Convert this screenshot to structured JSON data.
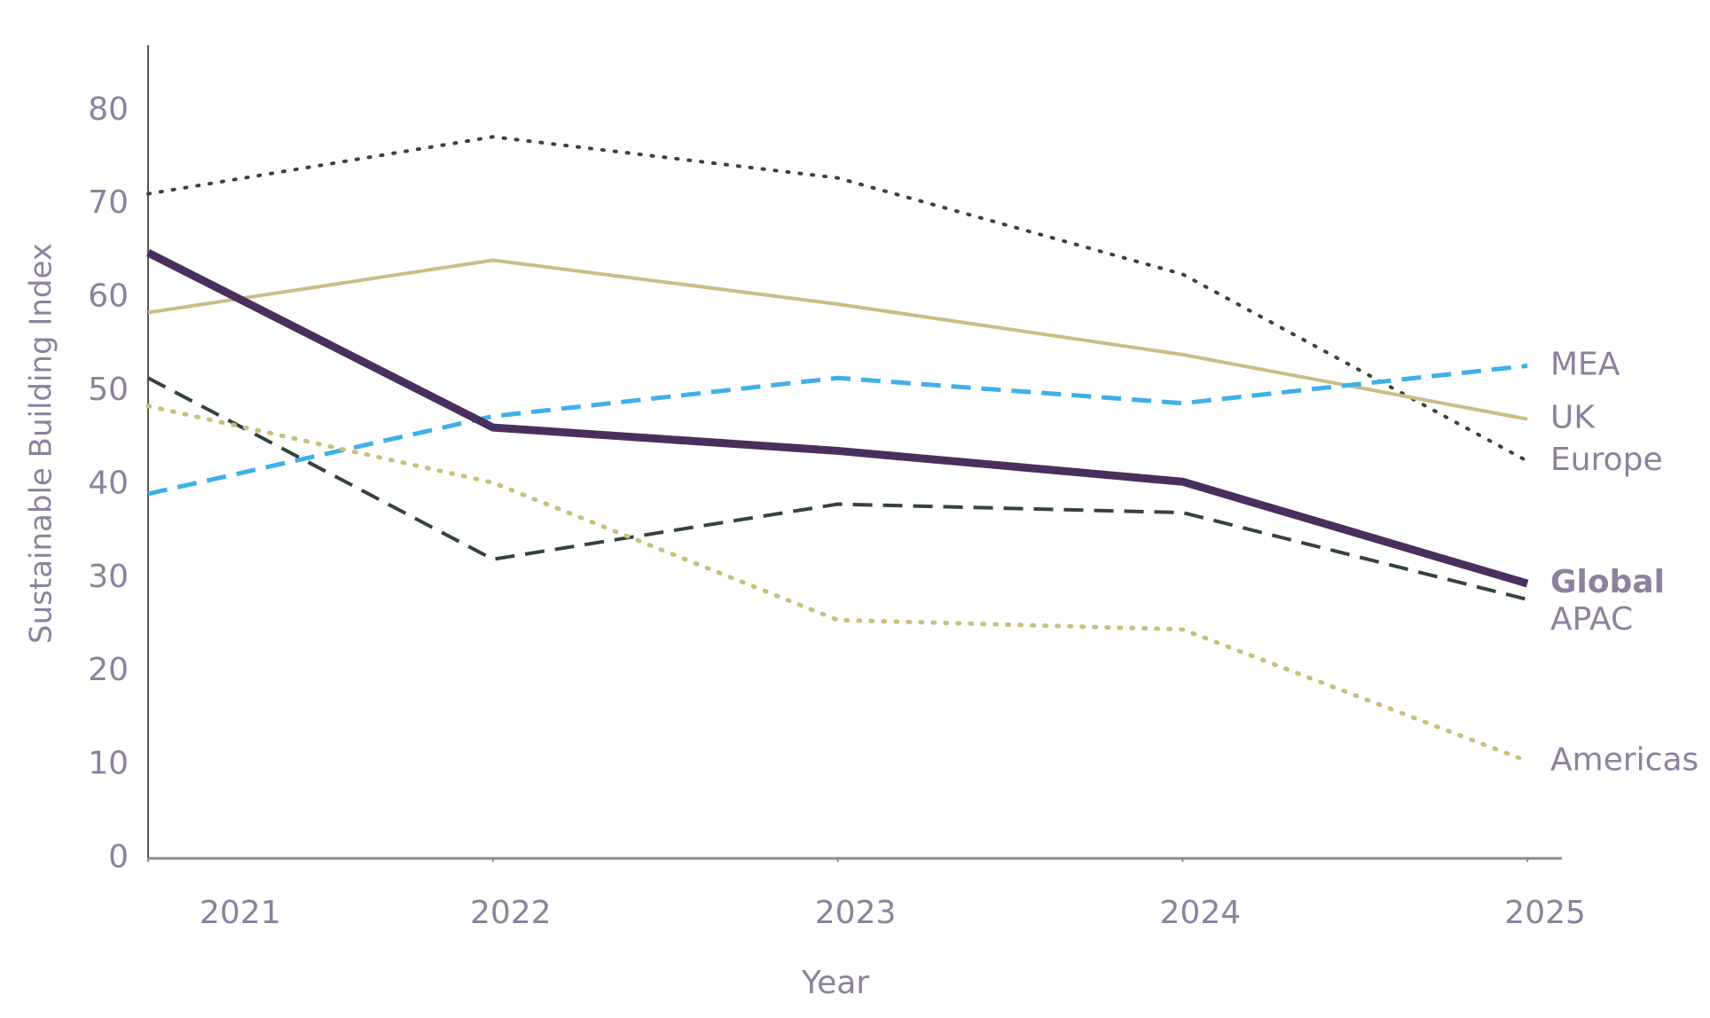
{
  "chart_data": {
    "type": "line",
    "y_label": "Sustainable Building Index",
    "x_label": "Year",
    "x": [
      2021,
      2022,
      2023,
      2024,
      2025
    ],
    "xlim": [
      2021,
      2025.1
    ],
    "xticks": [
      2021,
      2022,
      2023,
      2024,
      2025
    ],
    "ylim": [
      0,
      87
    ],
    "yticks": [
      0,
      10,
      20,
      30,
      40,
      50,
      60,
      70,
      80
    ],
    "grid": false,
    "series": [
      {
        "name": "Europe",
        "color": "#35433f",
        "dash": "dotted",
        "width": 4,
        "values": [
          71.1,
          77.2,
          72.8,
          62.5,
          42.5
        ]
      },
      {
        "name": "UK",
        "color": "#c9bd86",
        "dash": "solid",
        "width": 4,
        "values": [
          58.4,
          64.0,
          59.3,
          53.9,
          47.0
        ]
      },
      {
        "name": "MEA",
        "color": "#3fb0e8",
        "dash": "dashed",
        "width": 5,
        "values": [
          39.0,
          47.3,
          51.4,
          48.7,
          52.7
        ]
      },
      {
        "name": "Global",
        "color": "#4a2f5e",
        "dash": "solid",
        "width": 9,
        "emphasis": true,
        "values": [
          64.8,
          46.1,
          43.6,
          40.3,
          29.4
        ]
      },
      {
        "name": "APAC",
        "color": "#35433f",
        "dash": "dashed",
        "width": 4,
        "values": [
          51.4,
          32.0,
          37.9,
          37.0,
          27.7
        ]
      },
      {
        "name": "Americas",
        "color": "#c8c07a",
        "dash": "dotted",
        "width": 5,
        "values": [
          48.4,
          40.2,
          25.5,
          24.5,
          10.4
        ]
      }
    ]
  }
}
